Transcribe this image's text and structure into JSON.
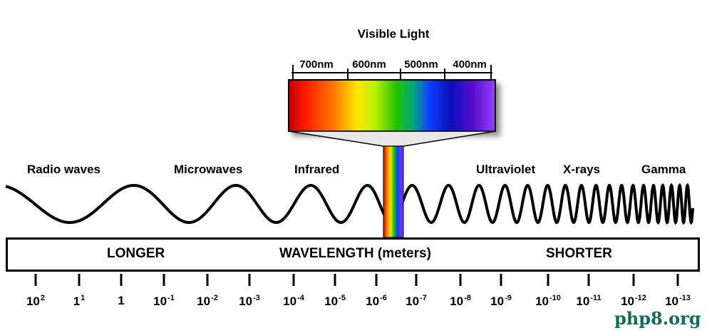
{
  "visible_light": {
    "title": "Visible Light",
    "nm_labels": [
      "700nm",
      "600nm",
      "500nm",
      "400nm"
    ]
  },
  "bands": [
    {
      "label": "Radio waves"
    },
    {
      "label": "Microwaves"
    },
    {
      "label": "Infrared"
    },
    {
      "label": "Ultraviolet"
    },
    {
      "label": "X-rays"
    },
    {
      "label": "Gamma"
    }
  ],
  "wavelength_bar": {
    "left_label": "LONGER",
    "center_label": "WAVELENGTH (meters)",
    "right_label": "SHORTER"
  },
  "ticks": [
    {
      "base": "10",
      "exp": "2"
    },
    {
      "base": "1",
      "exp": "1"
    },
    {
      "base": "1",
      "exp": ""
    },
    {
      "base": "10",
      "exp": "-1"
    },
    {
      "base": "10",
      "exp": "-2"
    },
    {
      "base": "10",
      "exp": "-3"
    },
    {
      "base": "10",
      "exp": "-4"
    },
    {
      "base": "10",
      "exp": "-5"
    },
    {
      "base": "10",
      "exp": "-6"
    },
    {
      "base": "10",
      "exp": "-7"
    },
    {
      "base": "10",
      "exp": "-8"
    },
    {
      "base": "10",
      "exp": "-9"
    },
    {
      "base": "10",
      "exp": "-10"
    },
    {
      "base": "10",
      "exp": "-11"
    },
    {
      "base": "10",
      "exp": "-12"
    },
    {
      "base": "10",
      "exp": "-13"
    }
  ],
  "watermark": "php8.org",
  "colors": {
    "spectrum": [
      "#d90000",
      "#ff2a00",
      "#ff8c00",
      "#ffe600",
      "#c8f000",
      "#3cc800",
      "#00b23c",
      "#00a0a0",
      "#1040ff",
      "#0010c0",
      "#3a00b0",
      "#7a20e0",
      "#9a40ff"
    ],
    "watermark": "#0c6b5b"
  }
}
